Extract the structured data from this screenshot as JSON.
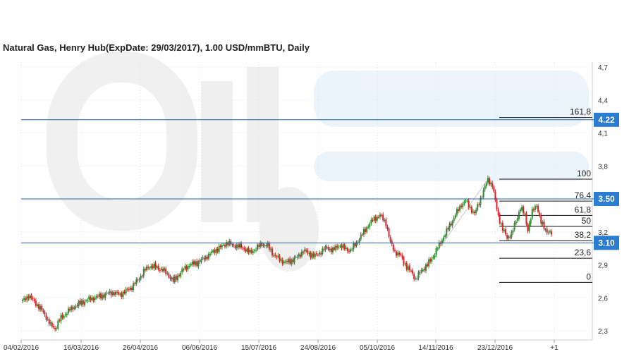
{
  "chart_data": {
    "type": "candlestick",
    "title": "Natural Gas, Henry Hub(ExpDate: 29/03/2017), 1.00 USD/mmBTU, Daily",
    "y_axis_side": "right",
    "ylim": [
      2.2,
      4.8
    ],
    "y_ticks": [
      {
        "value": 2.3,
        "label": "2,3"
      },
      {
        "value": 2.6,
        "label": "2,6"
      },
      {
        "value": 2.9,
        "label": "2,9"
      },
      {
        "value": 3.2,
        "label": "3,2"
      },
      {
        "value": 3.8,
        "label": "3,8"
      },
      {
        "value": 4.1,
        "label": "4,1"
      },
      {
        "value": 4.4,
        "label": "4,4"
      },
      {
        "value": 4.7,
        "label": "4,7"
      }
    ],
    "x_ticks": [
      "04/02/2016",
      "16/03/2016",
      "26/04/2016",
      "06/06/2016",
      "15/07/2016",
      "24/08/2016",
      "05/10/2016",
      "14/11/2016",
      "23/12/2016",
      "+1"
    ],
    "grid": true,
    "up_color": "#2e8b2e",
    "down_color": "#d8232a",
    "price_path": [
      [
        0,
        2.57
      ],
      [
        4,
        2.62
      ],
      [
        9,
        2.55
      ],
      [
        15,
        2.45
      ],
      [
        19,
        2.35
      ],
      [
        22,
        2.32
      ],
      [
        25,
        2.4
      ],
      [
        30,
        2.47
      ],
      [
        36,
        2.53
      ],
      [
        42,
        2.57
      ],
      [
        48,
        2.6
      ],
      [
        54,
        2.62
      ],
      [
        60,
        2.65
      ],
      [
        66,
        2.63
      ],
      [
        70,
        2.66
      ],
      [
        74,
        2.7
      ],
      [
        78,
        2.76
      ],
      [
        82,
        2.84
      ],
      [
        86,
        2.89
      ],
      [
        90,
        2.88
      ],
      [
        94,
        2.86
      ],
      [
        98,
        2.82
      ],
      [
        102,
        2.75
      ],
      [
        105,
        2.8
      ],
      [
        109,
        2.86
      ],
      [
        113,
        2.9
      ],
      [
        118,
        2.92
      ],
      [
        122,
        2.95
      ],
      [
        126,
        2.99
      ],
      [
        130,
        3.03
      ],
      [
        134,
        3.06
      ],
      [
        138,
        3.1
      ],
      [
        142,
        3.08
      ],
      [
        146,
        3.07
      ],
      [
        150,
        3.05
      ],
      [
        154,
        3.01
      ],
      [
        158,
        3.05
      ],
      [
        162,
        3.09
      ],
      [
        166,
        3.07
      ],
      [
        170,
        2.99
      ],
      [
        174,
        2.95
      ],
      [
        178,
        2.92
      ],
      [
        182,
        2.94
      ],
      [
        186,
        2.97
      ],
      [
        190,
        3.03
      ],
      [
        194,
        3.0
      ],
      [
        198,
        2.98
      ],
      [
        202,
        3.02
      ],
      [
        206,
        3.06
      ],
      [
        210,
        3.03
      ],
      [
        214,
        3.08
      ],
      [
        218,
        3.05
      ],
      [
        222,
        3.03
      ],
      [
        226,
        3.1
      ],
      [
        230,
        3.18
      ],
      [
        234,
        3.26
      ],
      [
        238,
        3.32
      ],
      [
        242,
        3.35
      ],
      [
        246,
        3.28
      ],
      [
        249,
        3.1
      ],
      [
        252,
        3.02
      ],
      [
        256,
        2.98
      ],
      [
        260,
        2.88
      ],
      [
        264,
        2.82
      ],
      [
        266,
        2.77
      ],
      [
        270,
        2.85
      ],
      [
        274,
        2.9
      ],
      [
        278,
        2.98
      ],
      [
        282,
        3.08
      ],
      [
        286,
        3.18
      ],
      [
        290,
        3.28
      ],
      [
        294,
        3.38
      ],
      [
        297,
        3.45
      ],
      [
        300,
        3.48
      ],
      [
        303,
        3.42
      ],
      [
        306,
        3.36
      ],
      [
        309,
        3.47
      ],
      [
        312,
        3.57
      ],
      [
        315,
        3.68
      ],
      [
        318,
        3.62
      ],
      [
        320,
        3.48
      ],
      [
        322,
        3.35
      ],
      [
        325,
        3.22
      ],
      [
        328,
        3.15
      ],
      [
        331,
        3.18
      ],
      [
        334,
        3.3
      ],
      [
        337,
        3.42
      ],
      [
        340,
        3.35
      ],
      [
        342,
        3.22
      ],
      [
        345,
        3.38
      ],
      [
        348,
        3.45
      ],
      [
        351,
        3.28
      ],
      [
        354,
        3.22
      ],
      [
        356,
        3.2
      ],
      [
        358,
        3.18
      ]
    ],
    "reference_lines": [
      {
        "value": 4.22,
        "label": "4.22"
      },
      {
        "value": 3.5,
        "label": "3.50"
      },
      {
        "value": 3.1,
        "label": "3.10"
      }
    ],
    "fibonacci": {
      "levels": [
        {
          "value": 4.24,
          "label": "161,8"
        },
        {
          "value": 3.68,
          "label": "100"
        },
        {
          "value": 3.48,
          "label": "76,4"
        },
        {
          "value": 3.35,
          "label": "61,8"
        },
        {
          "value": 3.25,
          "label": "50"
        },
        {
          "value": 3.12,
          "label": "38,2"
        },
        {
          "value": 2.96,
          "label": "23,6"
        },
        {
          "value": 2.74,
          "label": "0"
        }
      ],
      "from": [
        266,
        2.74
      ],
      "to": [
        315,
        3.68
      ]
    },
    "watermark": "OilStat"
  }
}
